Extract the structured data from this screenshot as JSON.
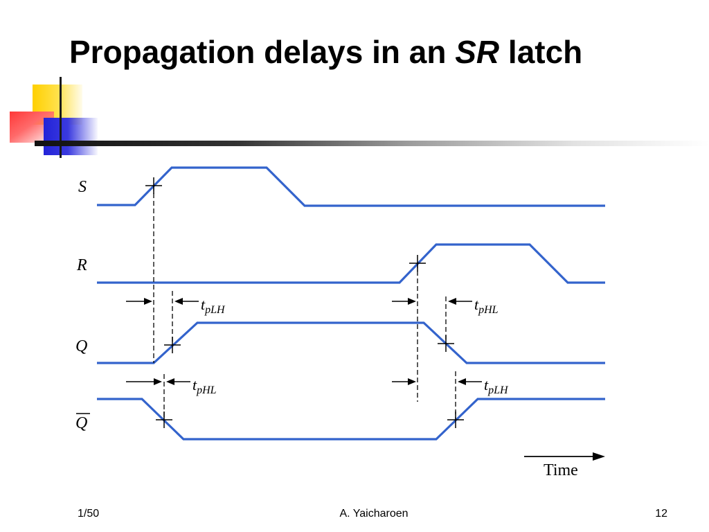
{
  "slide": {
    "title_prefix": "Propagation delays in an ",
    "title_emph": "SR",
    "title_suffix": " latch"
  },
  "diagram": {
    "signals": [
      "S",
      "R",
      "Q",
      "Q"
    ],
    "delay_labels": [
      {
        "t": "t",
        "sub": "pLH"
      },
      {
        "t": "t",
        "sub": "pHL"
      },
      {
        "t": "t",
        "sub": "pHL"
      },
      {
        "t": "t",
        "sub": "pLH"
      }
    ],
    "time_label": "Time",
    "wave_color": "#3363cc"
  },
  "footer": {
    "left": "1/50",
    "center": "A. Yaicharoen",
    "right": "12"
  },
  "decoration": {
    "yellow": "#ffd000",
    "red": "#ff3838",
    "blue": "#2323d8"
  }
}
